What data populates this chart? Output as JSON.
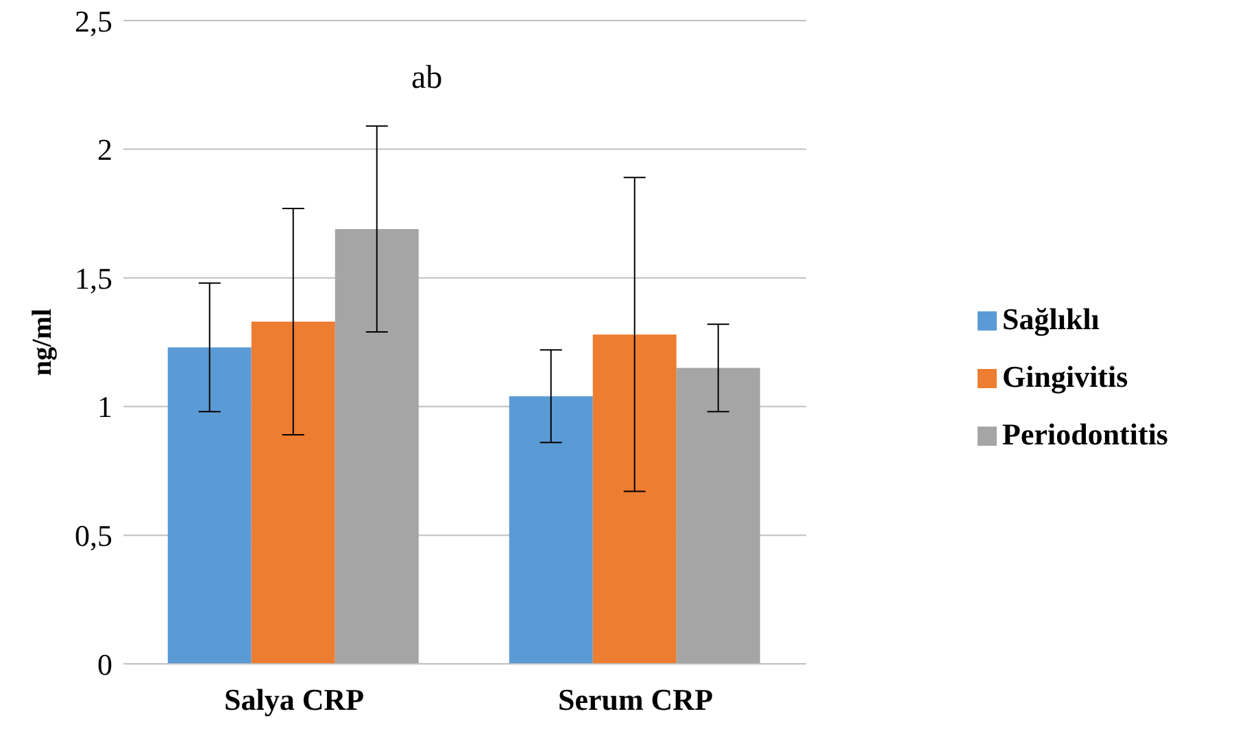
{
  "chart_data": {
    "type": "bar",
    "ylabel": "ng/ml",
    "categories": [
      "Salya CRP",
      "Serum CRP"
    ],
    "series": [
      {
        "name": "Sağlıklı",
        "color": "#5b9bd5",
        "values": [
          1.23,
          1.04
        ],
        "errors": [
          0.25,
          0.18
        ]
      },
      {
        "name": "Gingivitis",
        "color": "#ed7d31",
        "values": [
          1.33,
          1.28
        ],
        "errors": [
          0.44,
          0.61
        ]
      },
      {
        "name": "Periodontitis",
        "color": "#a5a5a5",
        "values": [
          1.69,
          1.15
        ],
        "errors": [
          0.4,
          0.17
        ]
      }
    ],
    "ylim": [
      0,
      2.5
    ],
    "yticks": [
      0,
      {
        "value": 0.5,
        "label": "0,5"
      },
      1,
      {
        "value": 1.5,
        "label": "1,5"
      },
      2,
      {
        "value": 2.5,
        "label": "2,5"
      }
    ],
    "grid": "y",
    "legend": "right",
    "annotations": [
      "ab"
    ]
  }
}
